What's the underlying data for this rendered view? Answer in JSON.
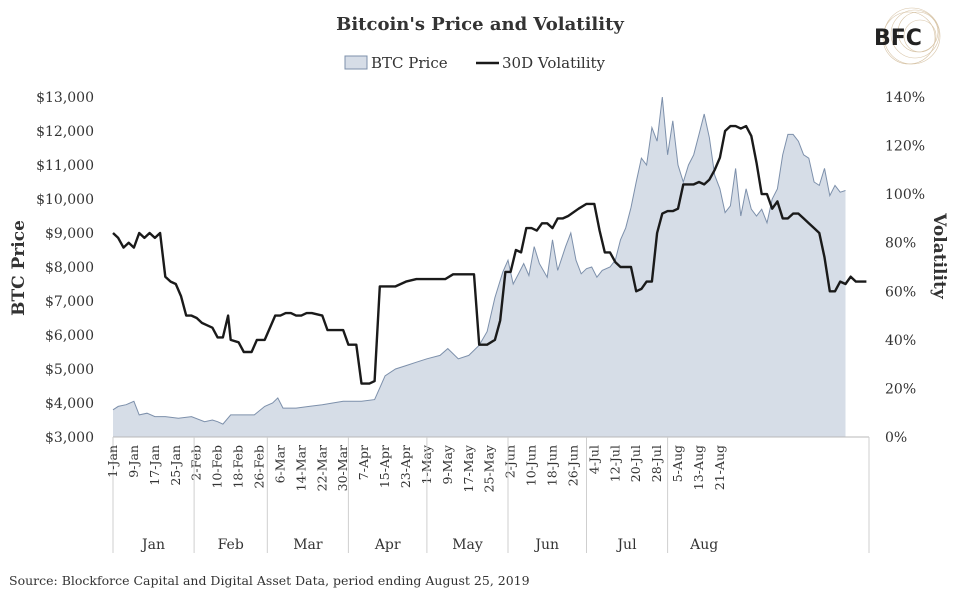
{
  "logo": {
    "text": "BFC"
  },
  "source": "Source: Blockforce Capital and Digital Asset Data, period ending August 25, 2019",
  "chart_data": {
    "type": "area+line",
    "title": "Bitcoin's Price and Volatility",
    "legend": {
      "position": "top-center",
      "entries": [
        "BTC Price",
        "30D Volatility"
      ]
    },
    "ylabel_left": "BTC Price",
    "ylabel_right": "Volatility",
    "ylim_left": [
      3000,
      13000
    ],
    "ylim_right": [
      0,
      140
    ],
    "grid": false,
    "y_left_ticks": [
      "$3,000",
      "$4,000",
      "$5,000",
      "$6,000",
      "$7,000",
      "$8,000",
      "$9,000",
      "$10,000",
      "$11,000",
      "$12,000",
      "$13,000"
    ],
    "y_right_ticks": [
      "0%",
      "20%",
      "40%",
      "60%",
      "80%",
      "100%",
      "120%",
      "140%"
    ],
    "x_tick_labels": [
      "1-Jan",
      "9-Jan",
      "17-Jan",
      "25-Jan",
      "2-Feb",
      "10-Feb",
      "18-Feb",
      "26-Feb",
      "6-Mar",
      "14-Mar",
      "22-Mar",
      "30-Mar",
      "7-Apr",
      "15-Apr",
      "23-Apr",
      "1-May",
      "9-May",
      "17-May",
      "25-May",
      "2-Jun",
      "10-Jun",
      "18-Jun",
      "26-Jun",
      "4-Jul",
      "12-Jul",
      "20-Jul",
      "28-Jul",
      "5-Aug",
      "13-Aug",
      "21-Aug"
    ],
    "months": [
      "Jan",
      "Feb",
      "Mar",
      "Apr",
      "May",
      "Jun",
      "Jul",
      "Aug"
    ],
    "series": [
      {
        "name": "BTC Price",
        "type": "area",
        "axis": "left",
        "color": "#d6dde7",
        "stroke": "#7d90ab",
        "points": [
          [
            0,
            3800
          ],
          [
            2,
            3900
          ],
          [
            5,
            3950
          ],
          [
            8,
            4050
          ],
          [
            10,
            3650
          ],
          [
            13,
            3700
          ],
          [
            16,
            3600
          ],
          [
            20,
            3600
          ],
          [
            25,
            3550
          ],
          [
            30,
            3600
          ],
          [
            35,
            3450
          ],
          [
            38,
            3500
          ],
          [
            40,
            3450
          ],
          [
            42,
            3380
          ],
          [
            45,
            3650
          ],
          [
            50,
            3650
          ],
          [
            54,
            3650
          ],
          [
            58,
            3900
          ],
          [
            61,
            4000
          ],
          [
            63,
            4150
          ],
          [
            65,
            3850
          ],
          [
            70,
            3850
          ],
          [
            75,
            3900
          ],
          [
            80,
            3950
          ],
          [
            84,
            4000
          ],
          [
            88,
            4050
          ],
          [
            92,
            4050
          ],
          [
            95,
            4050
          ],
          [
            100,
            4100
          ],
          [
            104,
            4800
          ],
          [
            108,
            5000
          ],
          [
            112,
            5100
          ],
          [
            116,
            5200
          ],
          [
            120,
            5300
          ],
          [
            125,
            5400
          ],
          [
            128,
            5600
          ],
          [
            132,
            5300
          ],
          [
            136,
            5400
          ],
          [
            140,
            5700
          ],
          [
            143,
            6100
          ],
          [
            146,
            7100
          ],
          [
            149,
            7850
          ],
          [
            151,
            8200
          ],
          [
            153,
            7500
          ],
          [
            155,
            7800
          ],
          [
            157,
            8100
          ],
          [
            159,
            7750
          ],
          [
            161,
            8600
          ],
          [
            163,
            8100
          ],
          [
            166,
            7700
          ],
          [
            168,
            8800
          ],
          [
            170,
            7900
          ],
          [
            173,
            8600
          ],
          [
            175,
            9000
          ],
          [
            177,
            8200
          ],
          [
            179,
            7800
          ],
          [
            181,
            7950
          ],
          [
            183,
            8000
          ],
          [
            185,
            7700
          ],
          [
            187,
            7900
          ],
          [
            190,
            8000
          ],
          [
            192,
            8200
          ],
          [
            194,
            8800
          ],
          [
            196,
            9150
          ],
          [
            198,
            9750
          ],
          [
            200,
            10500
          ],
          [
            202,
            11200
          ],
          [
            204,
            11000
          ],
          [
            206,
            12100
          ],
          [
            208,
            11700
          ],
          [
            210,
            13000
          ],
          [
            212,
            11300
          ],
          [
            214,
            12300
          ],
          [
            216,
            11000
          ],
          [
            218,
            10500
          ],
          [
            220,
            11000
          ],
          [
            222,
            11300
          ],
          [
            224,
            11900
          ],
          [
            226,
            12500
          ],
          [
            228,
            11800
          ],
          [
            230,
            10700
          ],
          [
            232,
            10300
          ],
          [
            234,
            9600
          ],
          [
            236,
            9800
          ],
          [
            238,
            10900
          ],
          [
            240,
            9500
          ],
          [
            242,
            10300
          ],
          [
            244,
            9700
          ],
          [
            246,
            9500
          ],
          [
            248,
            9700
          ],
          [
            250,
            9300
          ],
          [
            252,
            10000
          ],
          [
            254,
            10300
          ],
          [
            256,
            11300
          ],
          [
            258,
            11900
          ],
          [
            260,
            11900
          ],
          [
            262,
            11700
          ],
          [
            264,
            11300
          ],
          [
            266,
            11200
          ],
          [
            268,
            10500
          ],
          [
            270,
            10400
          ],
          [
            272,
            10900
          ],
          [
            274,
            10100
          ],
          [
            276,
            10400
          ],
          [
            278,
            10200
          ],
          [
            280,
            10250
          ]
        ]
      },
      {
        "name": "30D Volatility",
        "type": "line",
        "axis": "right",
        "color": "#1a1a1a",
        "points": [
          [
            0,
            84
          ],
          [
            2,
            82
          ],
          [
            4,
            78
          ],
          [
            6,
            80
          ],
          [
            8,
            78
          ],
          [
            10,
            84
          ],
          [
            12,
            82
          ],
          [
            14,
            84
          ],
          [
            16,
            82
          ],
          [
            18,
            84
          ],
          [
            20,
            66
          ],
          [
            22,
            64
          ],
          [
            24,
            63
          ],
          [
            26,
            58
          ],
          [
            28,
            50
          ],
          [
            30,
            50
          ],
          [
            32,
            49
          ],
          [
            34,
            47
          ],
          [
            36,
            46
          ],
          [
            38,
            45
          ],
          [
            40,
            41
          ],
          [
            42,
            41
          ],
          [
            44,
            50
          ],
          [
            45,
            40
          ],
          [
            48,
            39
          ],
          [
            50,
            35
          ],
          [
            53,
            35
          ],
          [
            55,
            40
          ],
          [
            58,
            40
          ],
          [
            62,
            50
          ],
          [
            64,
            50
          ],
          [
            66,
            51
          ],
          [
            68,
            51
          ],
          [
            70,
            50
          ],
          [
            72,
            50
          ],
          [
            74,
            51
          ],
          [
            76,
            51
          ],
          [
            80,
            50
          ],
          [
            82,
            44
          ],
          [
            85,
            44
          ],
          [
            88,
            44
          ],
          [
            90,
            38
          ],
          [
            93,
            38
          ],
          [
            95,
            22
          ],
          [
            98,
            22
          ],
          [
            100,
            23
          ],
          [
            102,
            62
          ],
          [
            105,
            62
          ],
          [
            108,
            62
          ],
          [
            112,
            64
          ],
          [
            116,
            65
          ],
          [
            122,
            65
          ],
          [
            127,
            65
          ],
          [
            130,
            67
          ],
          [
            135,
            67
          ],
          [
            138,
            67
          ],
          [
            140,
            38
          ],
          [
            143,
            38
          ],
          [
            146,
            40
          ],
          [
            148,
            48
          ],
          [
            150,
            68
          ],
          [
            152,
            68
          ],
          [
            154,
            77
          ],
          [
            156,
            76
          ],
          [
            158,
            86
          ],
          [
            160,
            86
          ],
          [
            162,
            85
          ],
          [
            164,
            88
          ],
          [
            166,
            88
          ],
          [
            168,
            86
          ],
          [
            170,
            90
          ],
          [
            172,
            90
          ],
          [
            174,
            91
          ],
          [
            178,
            94
          ],
          [
            181,
            96
          ],
          [
            184,
            96
          ],
          [
            186,
            85
          ],
          [
            188,
            76
          ],
          [
            190,
            76
          ],
          [
            192,
            72
          ],
          [
            194,
            70
          ],
          [
            196,
            70
          ],
          [
            198,
            70
          ],
          [
            200,
            60
          ],
          [
            202,
            61
          ],
          [
            204,
            64
          ],
          [
            206,
            64
          ],
          [
            208,
            84
          ],
          [
            210,
            92
          ],
          [
            212,
            93
          ],
          [
            214,
            93
          ],
          [
            216,
            94
          ],
          [
            218,
            104
          ],
          [
            220,
            104
          ],
          [
            222,
            104
          ],
          [
            224,
            105
          ],
          [
            226,
            104
          ],
          [
            228,
            106
          ],
          [
            230,
            110
          ],
          [
            232,
            115
          ],
          [
            234,
            126
          ],
          [
            236,
            128
          ],
          [
            238,
            128
          ],
          [
            240,
            127
          ],
          [
            242,
            128
          ],
          [
            244,
            124
          ],
          [
            246,
            113
          ],
          [
            248,
            100
          ],
          [
            250,
            100
          ],
          [
            252,
            94
          ],
          [
            254,
            97
          ],
          [
            256,
            90
          ],
          [
            258,
            90
          ],
          [
            260,
            92
          ],
          [
            262,
            92
          ],
          [
            264,
            90
          ],
          [
            266,
            88
          ],
          [
            268,
            86
          ],
          [
            270,
            84
          ],
          [
            272,
            74
          ],
          [
            274,
            60
          ],
          [
            276,
            60
          ],
          [
            278,
            64
          ],
          [
            280,
            63
          ],
          [
            282,
            66
          ],
          [
            284,
            64
          ],
          [
            286,
            64
          ],
          [
            288,
            64
          ]
        ]
      }
    ]
  }
}
